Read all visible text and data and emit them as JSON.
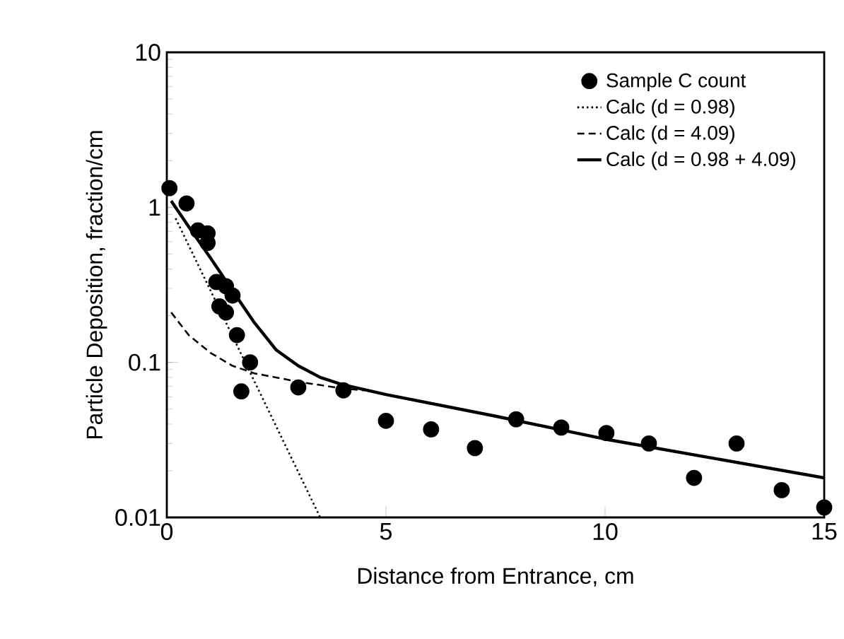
{
  "chart_data": {
    "type": "scatter",
    "xlabel": "Distance from Entrance, cm",
    "ylabel": "Particle Deposition, fraction/cm",
    "log": "y",
    "xlim": [
      0,
      15
    ],
    "xticks": [
      0,
      5,
      10,
      15
    ],
    "ylim": [
      0.01,
      10
    ],
    "yticks": [
      0.01,
      0.1,
      1,
      10
    ],
    "grid": false,
    "legend": "top right",
    "series": [
      {
        "name": "Sample C count",
        "marker": "circle",
        "color": "#000000",
        "x": [
          0.06,
          0.45,
          0.71,
          0.93,
          0.93,
          1.13,
          1.35,
          1.5,
          1.2,
          1.35,
          1.6,
          1.9,
          1.7,
          3.0,
          4.03,
          5.0,
          6.03,
          7.03,
          7.97,
          9.0,
          10.03,
          11.0,
          12.03,
          13.0,
          14.03,
          15.0
        ],
        "values": [
          1.33,
          1.06,
          0.71,
          0.68,
          0.59,
          0.33,
          0.31,
          0.27,
          0.23,
          0.21,
          0.15,
          0.1,
          0.065,
          0.069,
          0.066,
          0.042,
          0.037,
          0.028,
          0.043,
          0.038,
          0.035,
          0.03,
          0.018,
          0.03,
          0.015,
          0.0116
        ]
      },
      {
        "name": "Calc (d = 0.98)",
        "type": "line",
        "marker": "none",
        "line_style": "dotted",
        "color": "#000000",
        "x": [
          0.2,
          3.5
        ],
        "values": [
          0.85,
          0.01
        ]
      },
      {
        "name": "Calc (d = 4.09)",
        "type": "line",
        "marker": "none",
        "line_style": "dashed",
        "color": "#000000",
        "x": [
          0.1,
          0.5,
          1,
          1.5,
          2,
          3,
          4,
          4.5
        ],
        "values": [
          0.21,
          0.15,
          0.115,
          0.095,
          0.085,
          0.075,
          0.068,
          0.066
        ]
      },
      {
        "name": "Calc (d = 0.98 + 4.09)",
        "type": "line",
        "marker": "none",
        "line_style": "solid",
        "color": "#000000",
        "x": [
          0.1,
          0.5,
          1,
          1.5,
          2,
          2.5,
          3,
          3.5,
          4,
          5,
          7.5,
          10,
          12.5,
          15
        ],
        "values": [
          1.1,
          0.75,
          0.47,
          0.29,
          0.18,
          0.12,
          0.095,
          0.08,
          0.072,
          0.062,
          0.045,
          0.032,
          0.024,
          0.018
        ]
      }
    ]
  }
}
